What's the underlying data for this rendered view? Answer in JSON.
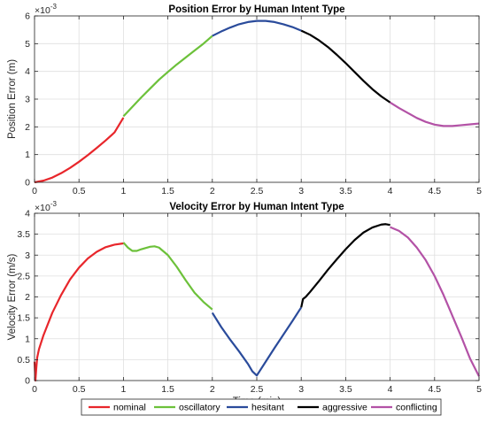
{
  "legend": {
    "entries": [
      {
        "label": "nominal",
        "color": "#e8262b"
      },
      {
        "label": "oscillatory",
        "color": "#6cc13a"
      },
      {
        "label": "hesitant",
        "color": "#2a4b9b"
      },
      {
        "label": "aggressive",
        "color": "#000000"
      },
      {
        "label": "conflicting",
        "color": "#b352a6"
      }
    ]
  },
  "chart_data": [
    {
      "type": "line",
      "title": "Position Error by Human Intent Type",
      "xlabel": "",
      "ylabel": "Position Error (m)",
      "y_exponent_label": "×10",
      "y_exponent": "-3",
      "xlim": [
        0,
        5
      ],
      "ylim": [
        0,
        6
      ],
      "xticks": [
        "0",
        "0.5",
        "1",
        "1.5",
        "2",
        "2.5",
        "3",
        "3.5",
        "4",
        "4.5",
        "5"
      ],
      "yticks": [
        "0",
        "1",
        "2",
        "3",
        "4",
        "5",
        "6"
      ],
      "grid": true,
      "series": [
        {
          "name": "nominal",
          "color": "#e8262b",
          "x": [
            0,
            0.1,
            0.2,
            0.3,
            0.4,
            0.5,
            0.6,
            0.7,
            0.8,
            0.9,
            1.0
          ],
          "y": [
            0,
            0.06,
            0.17,
            0.33,
            0.52,
            0.74,
            0.98,
            1.24,
            1.51,
            1.8,
            2.33
          ]
        },
        {
          "name": "oscillatory",
          "color": "#6cc13a",
          "x": [
            1.0,
            1.1,
            1.2,
            1.3,
            1.4,
            1.5,
            1.6,
            1.7,
            1.8,
            1.9,
            2.0
          ],
          "y": [
            2.38,
            2.72,
            3.06,
            3.38,
            3.7,
            3.98,
            4.25,
            4.5,
            4.75,
            5.0,
            5.28
          ]
        },
        {
          "name": "hesitant",
          "color": "#2a4b9b",
          "x": [
            2.0,
            2.1,
            2.2,
            2.3,
            2.4,
            2.5,
            2.6,
            2.7,
            2.8,
            2.9,
            3.0
          ],
          "y": [
            5.28,
            5.44,
            5.58,
            5.7,
            5.78,
            5.82,
            5.82,
            5.78,
            5.7,
            5.6,
            5.47
          ]
        },
        {
          "name": "aggressive",
          "color": "#000000",
          "x": [
            3.0,
            3.1,
            3.2,
            3.3,
            3.4,
            3.5,
            3.6,
            3.7,
            3.8,
            3.9,
            4.0
          ],
          "y": [
            5.47,
            5.32,
            5.12,
            4.88,
            4.6,
            4.3,
            3.98,
            3.66,
            3.36,
            3.1,
            2.88
          ]
        },
        {
          "name": "conflicting",
          "color": "#b352a6",
          "x": [
            4.0,
            4.1,
            4.2,
            4.3,
            4.4,
            4.5,
            4.6,
            4.7,
            4.8,
            4.9,
            5.0
          ],
          "y": [
            2.88,
            2.68,
            2.5,
            2.32,
            2.18,
            2.08,
            2.03,
            2.03,
            2.06,
            2.09,
            2.12
          ]
        }
      ]
    },
    {
      "type": "line",
      "title": "Velocity Error by Human Intent Type",
      "xlabel": "Time (min)",
      "ylabel": "Velocity Error (m/s)",
      "y_exponent_label": "×10",
      "y_exponent": "-3",
      "xlim": [
        0,
        5
      ],
      "ylim": [
        0,
        4
      ],
      "xticks": [
        "0",
        "0.5",
        "1",
        "1.5",
        "2",
        "2.5",
        "3",
        "3.5",
        "4",
        "4.5",
        "5"
      ],
      "yticks": [
        "0",
        "0.5",
        "1",
        "1.5",
        "2",
        "2.5",
        "3",
        "3.5",
        "4"
      ],
      "grid": true,
      "series": [
        {
          "name": "nominal",
          "color": "#e8262b",
          "x": [
            0,
            0.01,
            0.02,
            0.03,
            0.05,
            0.1,
            0.2,
            0.3,
            0.4,
            0.5,
            0.6,
            0.7,
            0.8,
            0.9,
            1.0
          ],
          "y": [
            0.45,
            0.0,
            0.3,
            0.55,
            0.75,
            1.08,
            1.62,
            2.05,
            2.42,
            2.7,
            2.92,
            3.08,
            3.19,
            3.25,
            3.28
          ]
        },
        {
          "name": "oscillatory",
          "color": "#6cc13a",
          "x": [
            1.0,
            1.05,
            1.1,
            1.15,
            1.2,
            1.3,
            1.35,
            1.4,
            1.5,
            1.6,
            1.7,
            1.8,
            1.9,
            2.0
          ],
          "y": [
            3.3,
            3.18,
            3.1,
            3.1,
            3.14,
            3.2,
            3.21,
            3.18,
            3.0,
            2.72,
            2.4,
            2.1,
            1.88,
            1.7
          ]
        },
        {
          "name": "hesitant",
          "color": "#2a4b9b",
          "x": [
            2.0,
            2.1,
            2.2,
            2.3,
            2.4,
            2.45,
            2.5,
            2.6,
            2.7,
            2.8,
            2.9,
            3.0
          ],
          "y": [
            1.62,
            1.28,
            0.98,
            0.7,
            0.4,
            0.22,
            0.12,
            0.45,
            0.78,
            1.1,
            1.42,
            1.75
          ]
        },
        {
          "name": "aggressive",
          "color": "#000000",
          "x": [
            3.0,
            3.02,
            3.05,
            3.1,
            3.2,
            3.3,
            3.4,
            3.5,
            3.6,
            3.7,
            3.8,
            3.9,
            3.95,
            4.0
          ],
          "y": [
            1.75,
            1.95,
            2.0,
            2.12,
            2.38,
            2.65,
            2.9,
            3.14,
            3.36,
            3.54,
            3.66,
            3.73,
            3.74,
            3.72
          ]
        },
        {
          "name": "conflicting",
          "color": "#b352a6",
          "x": [
            4.0,
            4.1,
            4.2,
            4.3,
            4.4,
            4.5,
            4.6,
            4.7,
            4.8,
            4.9,
            5.0
          ],
          "y": [
            3.67,
            3.58,
            3.42,
            3.18,
            2.88,
            2.5,
            2.05,
            1.55,
            1.05,
            0.52,
            0.1
          ]
        }
      ]
    }
  ]
}
